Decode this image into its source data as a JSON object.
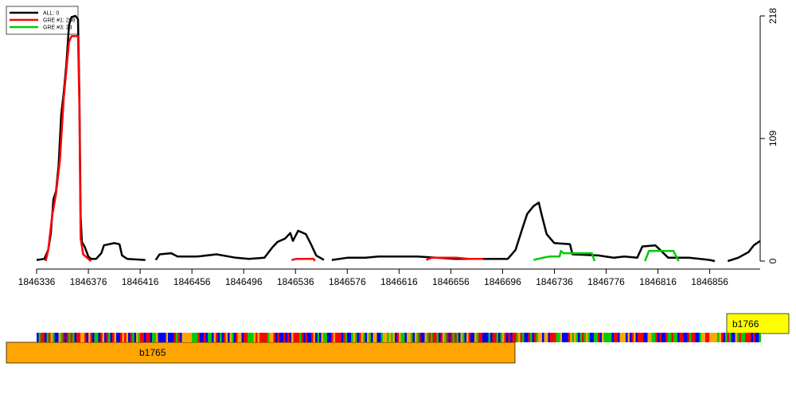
{
  "chart_data": {
    "type": "line",
    "xlim": [
      1846336,
      1846895
    ],
    "xticks": [
      1846336,
      1846376,
      1846416,
      1846456,
      1846496,
      1846536,
      1846576,
      1846616,
      1846656,
      1846696,
      1846736,
      1846776,
      1846816,
      1846856
    ],
    "ylim": [
      0,
      218
    ],
    "yticks": [
      0,
      109,
      218
    ],
    "series": [
      {
        "name": "ALL: 0",
        "color": "#000000",
        "x": [
          1846336,
          1846342,
          1846345,
          1846347,
          1846349,
          1846351,
          1846353,
          1846355,
          1846357,
          1846359,
          1846361,
          1846363,
          1846366,
          1846368,
          1846369,
          1846370,
          1846371,
          1846373,
          1846376,
          1846378,
          1846382,
          1846386,
          1846388,
          1846396,
          1846400,
          1846402,
          1846406,
          1846420,
          null,
          1846428,
          1846431,
          1846440,
          1846445,
          1846460,
          1846475,
          1846490,
          1846500,
          1846512,
          1846518,
          1846522,
          1846528,
          1846532,
          1846534,
          1846538,
          1846544,
          1846548,
          1846552,
          1846558,
          null,
          1846564,
          1846576,
          1846590,
          1846600,
          1846615,
          1846630,
          1846645,
          1846660,
          1846700,
          1846706,
          1846711,
          1846715,
          1846720,
          1846724,
          1846726,
          1846730,
          1846736,
          1846748,
          1846750,
          1846770,
          1846782,
          1846790,
          1846800,
          1846804,
          1846814,
          1846824,
          1846840,
          1846856,
          1846860,
          null,
          1846870,
          1846878,
          1846886,
          1846890,
          1846895
        ],
        "values": [
          1,
          2,
          10,
          25,
          55,
          62,
          85,
          130,
          150,
          175,
          210,
          217,
          218,
          215,
          150,
          40,
          17,
          13,
          4,
          2,
          2,
          7,
          14,
          16,
          15,
          5,
          2,
          1,
          null,
          1,
          6,
          7,
          4,
          4,
          6,
          3,
          2,
          3,
          12,
          17,
          20,
          25,
          18,
          27,
          24,
          15,
          5,
          1,
          null,
          1,
          3,
          3,
          4,
          4,
          4,
          3,
          2,
          2,
          10,
          28,
          42,
          49,
          52,
          42,
          24,
          16,
          15,
          6,
          5,
          3,
          4,
          3,
          13,
          14,
          3,
          3,
          1,
          0,
          null,
          0,
          3,
          8,
          14,
          18
        ]
      },
      {
        "name": "GRE #1: 208",
        "color": "#ff0000",
        "x": [
          1846343,
          1846345,
          1846348,
          1846351,
          1846354,
          1846357,
          1846359,
          1846361,
          1846363,
          1846368,
          1846369,
          1846370,
          1846372,
          1846376,
          1846378,
          null,
          1846533,
          1846537,
          1846550,
          1846551,
          null,
          1846637,
          1846641,
          1846660,
          1846670,
          1846681
        ],
        "values": [
          0,
          10,
          40,
          60,
          90,
          145,
          170,
          195,
          200,
          200,
          140,
          20,
          6,
          2,
          0,
          null,
          1,
          2,
          2,
          0,
          null,
          1,
          3,
          3,
          2,
          2
        ]
      },
      {
        "name": "GRE #3: 23",
        "color": "#00cc00",
        "x": [
          1846720,
          1846727,
          1846732,
          1846740,
          1846741,
          1846743,
          1846765,
          1846767,
          null,
          1846806,
          1846809,
          1846828,
          1846832
        ],
        "values": [
          1,
          3,
          4,
          4,
          9,
          7,
          7,
          0,
          null,
          0,
          9,
          9,
          0
        ]
      }
    ],
    "features": [
      {
        "label": "b1765"
      },
      {
        "label": "b1766"
      }
    ]
  }
}
